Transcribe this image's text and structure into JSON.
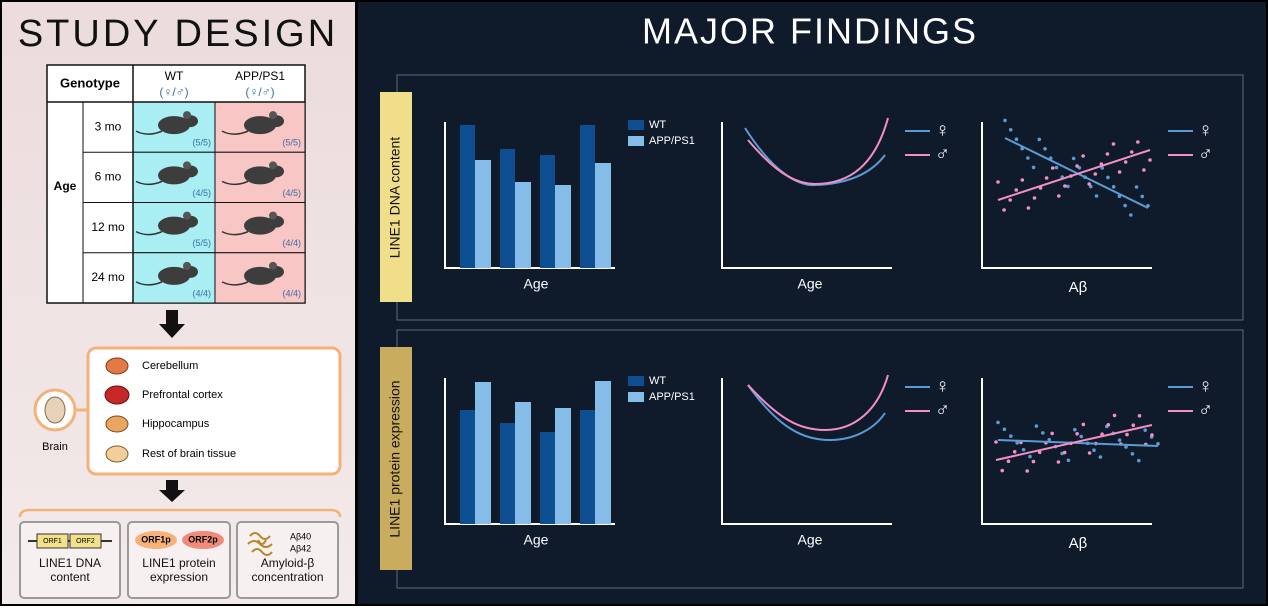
{
  "study_design": {
    "title": "STUDY DESIGN",
    "table": {
      "genotype_header": "Genotype",
      "columns": [
        {
          "name": "WT",
          "sex": "(♀/♂)"
        },
        {
          "name": "APP/PS1",
          "sex": "(♀/♂)"
        }
      ],
      "age_label": "Age",
      "rows": [
        {
          "age": "3 mo",
          "counts": [
            "(5/5)",
            "(5/5)"
          ]
        },
        {
          "age": "6 mo",
          "counts": [
            "(4/5)",
            "(4/5)"
          ]
        },
        {
          "age": "12 mo",
          "counts": [
            "(5/5)",
            "(4/4)"
          ]
        },
        {
          "age": "24 mo",
          "counts": [
            "(4/4)",
            "(4/4)"
          ]
        }
      ]
    },
    "brain_label": "Brain",
    "regions": [
      "Cerebellum",
      "Prefrontal cortex",
      "Hippocampus",
      "Rest of brain tissue"
    ],
    "outputs": [
      {
        "tags": [
          "ORF1",
          "ORF2"
        ],
        "label": "LINE1 DNA content"
      },
      {
        "tags": [
          "ORF1p",
          "ORF2p"
        ],
        "label": "LINE1 protein expression"
      },
      {
        "tags": [
          "Aβ40",
          "Aβ42"
        ],
        "label": "Amyloid-β concentration"
      }
    ]
  },
  "major_findings": {
    "title": "MAJOR FINDINGS",
    "panels": [
      {
        "label": "LINE1 DNA content",
        "bar_legend": [
          "WT",
          "APP/PS1"
        ],
        "bar_xlabel": "Age",
        "curve_xlabel": "Age",
        "sex_legend": [
          "♀",
          "♂"
        ],
        "scatter_xlabel": "Aβ"
      },
      {
        "label": "LINE1 protein expression",
        "bar_legend": [
          "WT",
          "APP/PS1"
        ],
        "bar_xlabel": "Age",
        "curve_xlabel": "Age",
        "sex_legend": [
          "♀",
          "♂"
        ],
        "scatter_xlabel": "Aβ"
      }
    ]
  }
}
